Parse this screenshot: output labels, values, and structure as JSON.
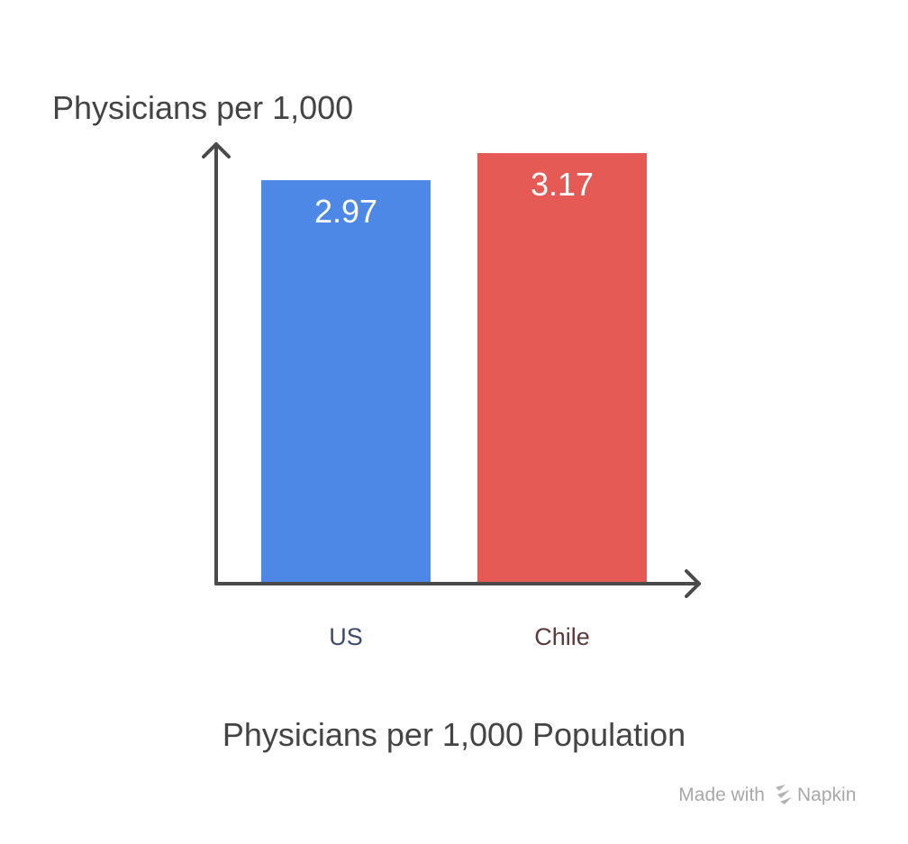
{
  "chart_data": {
    "type": "bar",
    "title": "Physicians per 1,000 Population",
    "ylabel": "Physicians per 1,000",
    "xlabel": "",
    "categories": [
      "US",
      "Chile"
    ],
    "values": [
      2.97,
      3.17
    ],
    "value_labels": [
      "2.97",
      "3.17"
    ],
    "bar_colors": [
      "#4e88e6",
      "#e55a55"
    ],
    "tick_label_colors": [
      "#3d4a6b",
      "#5a3a3a"
    ],
    "ylim": [
      0,
      3.17
    ],
    "grid": false,
    "legend": "none"
  },
  "watermark": {
    "prefix": "Made with",
    "brand": "Napkin",
    "icon": "napkin-logo-icon"
  }
}
